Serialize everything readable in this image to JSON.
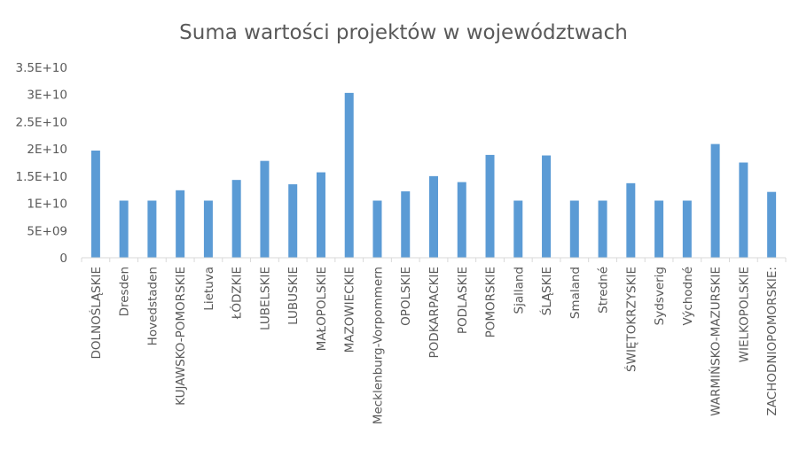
{
  "chart_data": {
    "type": "bar",
    "title": "Suma wartości projektów w województwach",
    "xlabel": "",
    "ylabel": "",
    "ylim": [
      0,
      35000000000
    ],
    "yticks": [
      {
        "value": 0,
        "label": "0"
      },
      {
        "value": 5000000000,
        "label": "5E+09"
      },
      {
        "value": 10000000000,
        "label": "1E+10"
      },
      {
        "value": 15000000000,
        "label": "1.5E+10"
      },
      {
        "value": 20000000000,
        "label": "2E+10"
      },
      {
        "value": 25000000000,
        "label": "2.5E+10"
      },
      {
        "value": 30000000000,
        "label": "3E+10"
      },
      {
        "value": 35000000000,
        "label": "3.5E+10"
      }
    ],
    "grid": false,
    "legend": "none",
    "bar_color": "#5B9BD5",
    "categories": [
      "DOLNOŚLĄSKIE",
      "Dresden",
      "Hovedstaden",
      "KUJAWSKO-POMORSKIE",
      "Lietuva",
      "ŁÓDZKIE",
      "LUBELSKIE",
      "LUBUSKIE",
      "MAŁOPOLSKIE",
      "MAZOWIECKIE",
      "Mecklenburg-Vorpommern",
      "OPOLSKIE",
      "PODKARPACKIE",
      "PODLASKIE",
      "POMORSKIE",
      "Sjalland",
      "ŚLĄSKIE",
      "Smaland",
      "Stredné",
      "ŚWIĘTOKRZYSKIE",
      "Sydsverig",
      "Východné",
      "WARMIŃSKO-MAZURSKIE",
      "WIELKOPOLSKIE",
      "ZACHODNIOPOMORSKIE:"
    ],
    "values": [
      19700000000,
      10500000000,
      10500000000,
      12400000000,
      10500000000,
      14300000000,
      17800000000,
      13500000000,
      15700000000,
      30300000000,
      10500000000,
      12200000000,
      15000000000,
      13900000000,
      18900000000,
      10500000000,
      18800000000,
      10500000000,
      10500000000,
      13700000000,
      10500000000,
      10500000000,
      20900000000,
      17500000000,
      12100000000
    ]
  }
}
